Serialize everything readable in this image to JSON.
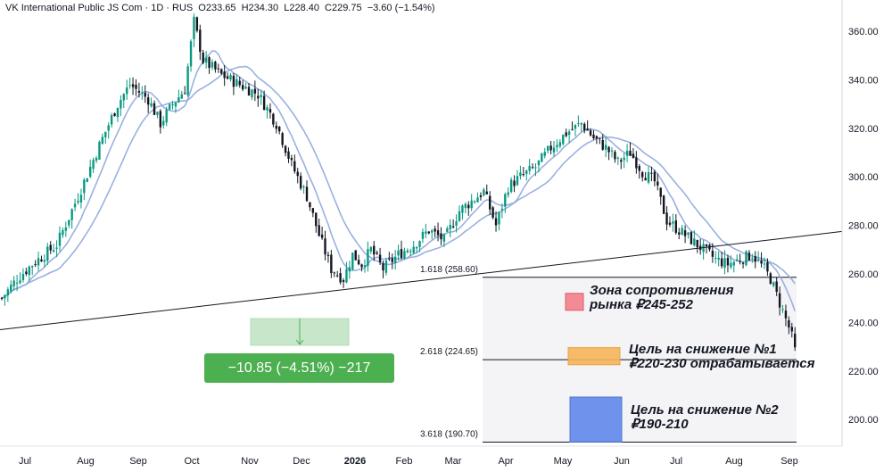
{
  "header": {
    "symbol": "VK International Public JS Com",
    "interval": "1D",
    "exchange": "RUS",
    "open": "O233.65",
    "high": "H234.30",
    "low": "L228.40",
    "close": "C229.75",
    "change": "−3.60 (−1.54%)"
  },
  "measure": {
    "label": "−10.85 (−4.51%) −217"
  },
  "annotations": {
    "resistance": [
      "Зона сопротивления",
      "рынка ₽245-252"
    ],
    "target1": [
      "Цель на снижение №1",
      "₽220-230 отрабатывается"
    ],
    "target2": [
      "Цель на снижение №2",
      "₽190-210"
    ]
  },
  "colors": {
    "up": "#089981",
    "down": "#131722",
    "ma": "#8fa8dd",
    "resistance": "#f28b95",
    "target1": "#f7b55a",
    "target2": "#6f93ec",
    "measure": "#4caf50"
  },
  "chart_data": {
    "type": "candlestick",
    "ylim": [
      185,
      370
    ],
    "y_ticks": [
      200,
      220,
      240,
      260,
      280,
      300,
      320,
      340,
      360
    ],
    "x_labels": [
      "Jul",
      "Aug",
      "Sep",
      "Oct",
      "Nov",
      "Dec",
      "2026",
      "Feb",
      "Mar",
      "Apr",
      "May",
      "Jun",
      "Jul",
      "Aug",
      "Sep"
    ],
    "x_label_bold": "2026",
    "price_path": [
      [
        0,
        250
      ],
      [
        5,
        258
      ],
      [
        10,
        264
      ],
      [
        18,
        272
      ],
      [
        25,
        292
      ],
      [
        32,
        313
      ],
      [
        38,
        330
      ],
      [
        42,
        338
      ],
      [
        48,
        332
      ],
      [
        52,
        322
      ],
      [
        56,
        330
      ],
      [
        60,
        336
      ],
      [
        63,
        364
      ],
      [
        66,
        348
      ],
      [
        72,
        342
      ],
      [
        78,
        338
      ],
      [
        84,
        334
      ],
      [
        90,
        322
      ],
      [
        95,
        305
      ],
      [
        100,
        292
      ],
      [
        104,
        276
      ],
      [
        108,
        262
      ],
      [
        112,
        258
      ],
      [
        115,
        268
      ],
      [
        118,
        264
      ],
      [
        121,
        270
      ],
      [
        125,
        262
      ],
      [
        130,
        268
      ],
      [
        135,
        272
      ],
      [
        140,
        278
      ],
      [
        145,
        274
      ],
      [
        150,
        286
      ],
      [
        154,
        290
      ],
      [
        158,
        294
      ],
      [
        162,
        280
      ],
      [
        166,
        296
      ],
      [
        170,
        300
      ],
      [
        175,
        304
      ],
      [
        180,
        312
      ],
      [
        185,
        318
      ],
      [
        190,
        322
      ],
      [
        194,
        316
      ],
      [
        198,
        312
      ],
      [
        202,
        306
      ],
      [
        206,
        310
      ],
      [
        210,
        302
      ],
      [
        214,
        298
      ],
      [
        218,
        282
      ],
      [
        222,
        278
      ],
      [
        226,
        274
      ],
      [
        230,
        270
      ],
      [
        234,
        266
      ],
      [
        238,
        264
      ],
      [
        242,
        266
      ],
      [
        246,
        268
      ],
      [
        250,
        262
      ],
      [
        252,
        258
      ],
      [
        255,
        248
      ],
      [
        258,
        238
      ],
      [
        260,
        230
      ]
    ],
    "trendline": {
      "from": [
        0,
        237
      ],
      "to": [
        275,
        277.5
      ]
    },
    "fib_levels": [
      {
        "label": "1.618 (258.60)",
        "value": 258.6
      },
      {
        "label": "2.618 (224.65)",
        "value": 224.65
      },
      {
        "label": "3.618 (190.70)",
        "value": 190.7
      }
    ],
    "zones": {
      "resistance": [
        245,
        252
      ],
      "target1": [
        220,
        230
      ],
      "target2": [
        190,
        210
      ]
    },
    "last_price": 229.75,
    "measure_change": "−10.85 (−4.51%) −217"
  }
}
